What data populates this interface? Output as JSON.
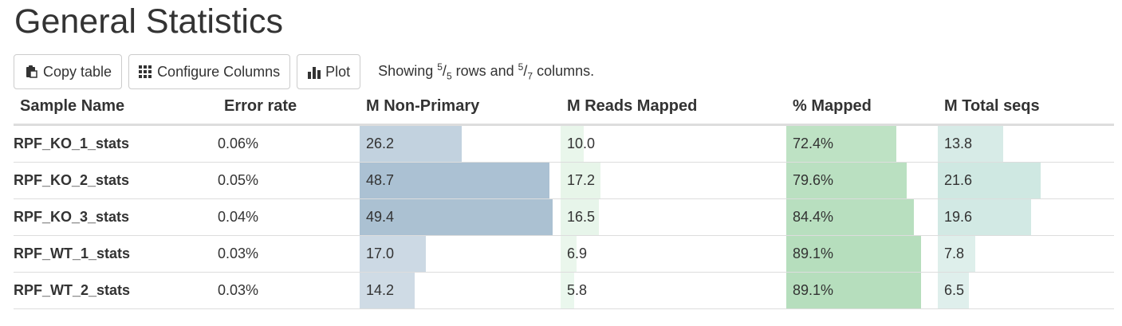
{
  "page": {
    "title": "General Statistics"
  },
  "toolbar": {
    "copy_label": "Copy table",
    "configure_label": "Configure Columns",
    "plot_label": "Plot",
    "showing_prefix": "Showing ",
    "rows_shown": "5",
    "rows_total": "5",
    "rows_word": " rows and ",
    "cols_shown": "5",
    "cols_total": "7",
    "cols_word": " columns."
  },
  "table": {
    "headers": [
      "Sample Name",
      "Error rate",
      "M Non-Primary",
      "M Reads Mapped",
      "% Mapped",
      "M Total seqs"
    ],
    "bar_colors": {
      "non_primary": "#9fb8cc",
      "reads_mapped": "#c9e9cf",
      "pct_mapped": "#a8d8b0",
      "total_seqs": "#b8dcd4"
    },
    "rows": [
      {
        "name": "RPF_KO_1_stats",
        "error_rate": "0.06%",
        "non_primary": "26.2",
        "reads_mapped": "10.0",
        "pct_mapped": "72.4%",
        "total_seqs": "13.8"
      },
      {
        "name": "RPF_KO_2_stats",
        "error_rate": "0.05%",
        "non_primary": "48.7",
        "reads_mapped": "17.2",
        "pct_mapped": "79.6%",
        "total_seqs": "21.6"
      },
      {
        "name": "RPF_KO_3_stats",
        "error_rate": "0.04%",
        "non_primary": "49.4",
        "reads_mapped": "16.5",
        "pct_mapped": "84.4%",
        "total_seqs": "19.6"
      },
      {
        "name": "RPF_WT_1_stats",
        "error_rate": "0.03%",
        "non_primary": "17.0",
        "reads_mapped": "6.9",
        "pct_mapped": "89.1%",
        "total_seqs": "7.8"
      },
      {
        "name": "RPF_WT_2_stats",
        "error_rate": "0.03%",
        "non_primary": "14.2",
        "reads_mapped": "5.8",
        "pct_mapped": "89.1%",
        "total_seqs": "6.5"
      }
    ]
  }
}
